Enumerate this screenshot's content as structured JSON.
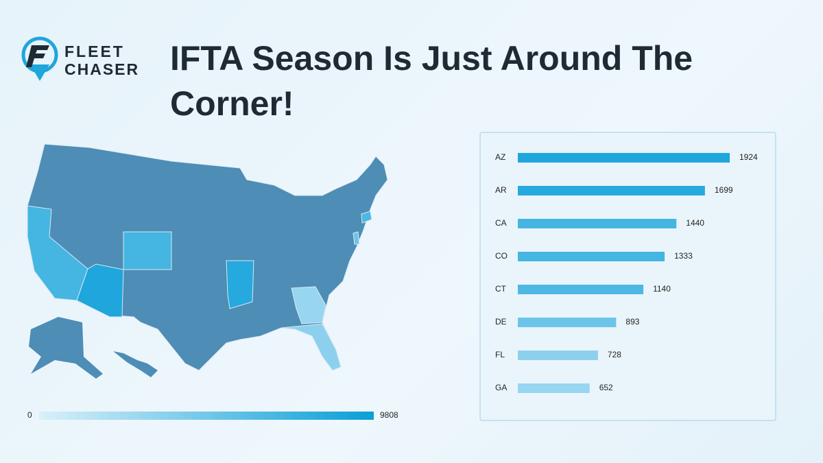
{
  "logo": {
    "line1": "FLEET",
    "line2": "CHASER"
  },
  "title": "IFTA Season Is Just Around The Corner!",
  "chart_data": [
    {
      "type": "map",
      "base_color": "#4d8db6",
      "scale": [
        0,
        9808
      ],
      "scale_colors": [
        "#d9f0fa",
        "#0a9fd6"
      ]
    },
    {
      "type": "bar",
      "categories": [
        "AZ",
        "AR",
        "CA",
        "CO",
        "CT",
        "DE",
        "FL",
        "GA"
      ],
      "values": [
        1924,
        1699,
        1440,
        1333,
        1140,
        893,
        728,
        652
      ],
      "colors": [
        "#1fa6dc",
        "#26a9de",
        "#45b5e2",
        "#45b5e2",
        "#4cb8e3",
        "#6cc4ea",
        "#8dd0ee",
        "#97d5f0"
      ]
    }
  ]
}
